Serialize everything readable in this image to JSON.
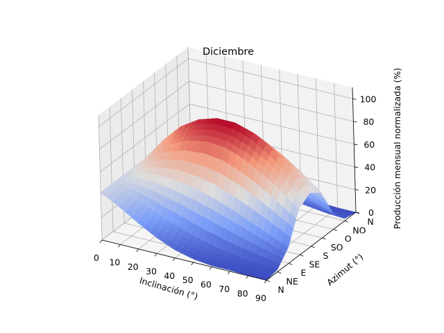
{
  "chart_data": {
    "type": "surface",
    "title": "Diciembre",
    "xlabel": "Inclinación (°)",
    "ylabel": "Azimut (°)",
    "zlabel": "Producción mensual normalizada (%)",
    "xlim": [
      0,
      90
    ],
    "zlim": [
      0,
      110
    ],
    "x_ticks": [
      "0",
      "10",
      "20",
      "30",
      "40",
      "50",
      "60",
      "70",
      "80",
      "90"
    ],
    "y_ticks": [
      "N",
      "NE",
      "E",
      "SE",
      "S",
      "SO",
      "O",
      "NO",
      "N"
    ],
    "z_ticks": [
      "0",
      "20",
      "40",
      "60",
      "80",
      "100"
    ],
    "colormap": "coolwarm",
    "grid": true,
    "inclination": [
      0,
      10,
      20,
      30,
      40,
      50,
      60,
      70,
      80,
      90
    ],
    "azimuth_deg": [
      0,
      45,
      90,
      135,
      180,
      225,
      270,
      315,
      360
    ],
    "surface_points": [
      {
        "azimuth": "N",
        "values": [
          42,
          33,
          23,
          14,
          7,
          3,
          1,
          1,
          0,
          0
        ]
      },
      {
        "azimuth": "NE",
        "values": [
          42,
          36,
          29,
          22,
          16,
          11,
          7,
          5,
          3,
          2
        ]
      },
      {
        "azimuth": "E",
        "values": [
          42,
          48,
          50,
          49,
          46,
          41,
          35,
          28,
          21,
          14
        ]
      },
      {
        "azimuth": "SE",
        "values": [
          42,
          58,
          70,
          77,
          80,
          79,
          73,
          64,
          53,
          40
        ]
      },
      {
        "azimuth": "S",
        "values": [
          42,
          62,
          78,
          88,
          93,
          93,
          88,
          77,
          63,
          47
        ]
      },
      {
        "azimuth": "SO",
        "values": [
          42,
          58,
          70,
          77,
          80,
          79,
          73,
          64,
          53,
          40
        ]
      },
      {
        "azimuth": "O",
        "values": [
          42,
          48,
          50,
          49,
          46,
          41,
          35,
          28,
          21,
          14
        ]
      },
      {
        "azimuth": "NO",
        "values": [
          42,
          36,
          29,
          22,
          16,
          11,
          7,
          5,
          3,
          2
        ]
      },
      {
        "azimuth": "N",
        "values": [
          42,
          33,
          23,
          14,
          7,
          3,
          1,
          1,
          0,
          0
        ]
      }
    ]
  }
}
